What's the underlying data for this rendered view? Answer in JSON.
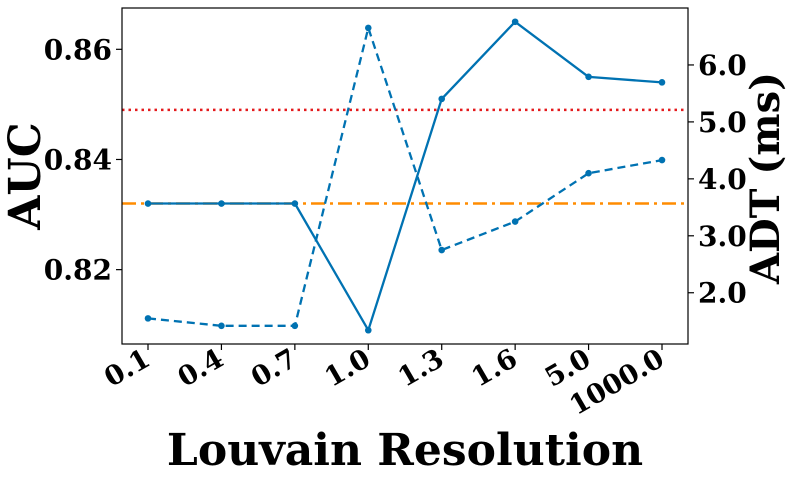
{
  "chart_data": {
    "type": "line",
    "title": "",
    "xlabel": "Louvain Resolution",
    "ylabel": "AUC",
    "y2label": "ADT (ms)",
    "categories": [
      "0.1",
      "0.4",
      "0.7",
      "1.0",
      "1.3",
      "1.6",
      "5.0",
      "1000.0"
    ],
    "ylim": [
      0.8065,
      0.8675
    ],
    "y2lim": [
      1.1,
      7.0
    ],
    "yticks": [
      "0.82",
      "0.84",
      "0.86"
    ],
    "y2ticks": [
      "2.0",
      "3.0",
      "4.0",
      "5.0",
      "6.0"
    ],
    "grid": false,
    "legend": "none",
    "series": [
      {
        "axis": "left",
        "style": "solid",
        "color": "#0072b2",
        "values": [
          0.832,
          0.832,
          0.832,
          0.809,
          0.851,
          0.865,
          0.855,
          0.854
        ]
      },
      {
        "axis": "right",
        "style": "dashed",
        "color": "#0072b2",
        "values": [
          1.55,
          1.42,
          1.42,
          6.65,
          2.75,
          3.25,
          4.1,
          4.33
        ]
      }
    ],
    "reference_lines": [
      {
        "axis": "left",
        "value": 0.849,
        "style": "dotted",
        "color": "#e41a1c"
      },
      {
        "axis": "left",
        "value": 0.832,
        "style": "dashdot",
        "color": "#ff8c00"
      }
    ]
  }
}
